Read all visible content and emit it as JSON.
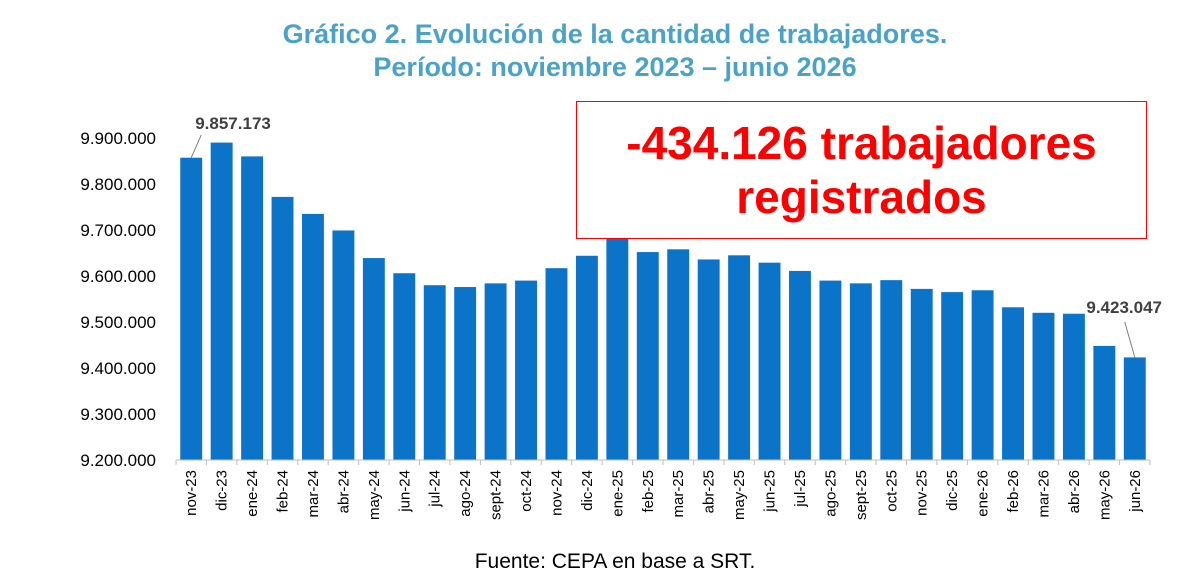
{
  "colors": {
    "title": "#4aa3c7",
    "bar": "#0b74c8",
    "callout": "#ff0000",
    "text": "#000000",
    "annotation": "#404040"
  },
  "chart_data": {
    "type": "bar",
    "title": "Gráfico 2. Evolución de la cantidad de trabajadores.",
    "subtitle": "Período: noviembre 2023 – junio 2026",
    "xlabel": "",
    "ylabel": "",
    "ylim": [
      9200000,
      9900000
    ],
    "yticks": [
      9200000,
      9300000,
      9400000,
      9500000,
      9600000,
      9700000,
      9800000,
      9900000
    ],
    "ytick_labels": [
      "9.200.000",
      "9.300.000",
      "9.400.000",
      "9.500.000",
      "9.600.000",
      "9.700.000",
      "9.800.000",
      "9.900.000"
    ],
    "grid": false,
    "legend": "none",
    "categories": [
      "nov-23",
      "dic-23",
      "ene-24",
      "feb-24",
      "mar-24",
      "abr-24",
      "may-24",
      "jun-24",
      "jul-24",
      "ago-24",
      "sept-24",
      "oct-24",
      "nov-24",
      "dic-24",
      "ene-25",
      "feb-25",
      "mar-25",
      "abr-25",
      "may-25",
      "jun-25",
      "jul-25",
      "ago-25",
      "sept-25",
      "oct-25",
      "nov-25",
      "dic-25",
      "ene-26",
      "feb-26",
      "mar-26",
      "abr-26",
      "may-26",
      "jun-26"
    ],
    "values": [
      9857173,
      9890000,
      9860000,
      9772000,
      9735000,
      9699000,
      9639000,
      9606000,
      9580000,
      9576000,
      9584000,
      9590000,
      9617000,
      9644000,
      9683000,
      9652000,
      9658000,
      9636000,
      9645000,
      9629000,
      9611000,
      9590000,
      9584000,
      9591000,
      9572000,
      9565000,
      9569000,
      9532000,
      9520000,
      9518000,
      9448000,
      9423047
    ],
    "annotations": [
      {
        "text": "9.857.173",
        "category": "nov-23"
      },
      {
        "text": "9.423.047",
        "category": "jun-26"
      }
    ]
  },
  "callout": {
    "line1": "-434.126 trabajadores",
    "line2": "registrados"
  },
  "source": "Fuente: CEPA en base a SRT."
}
